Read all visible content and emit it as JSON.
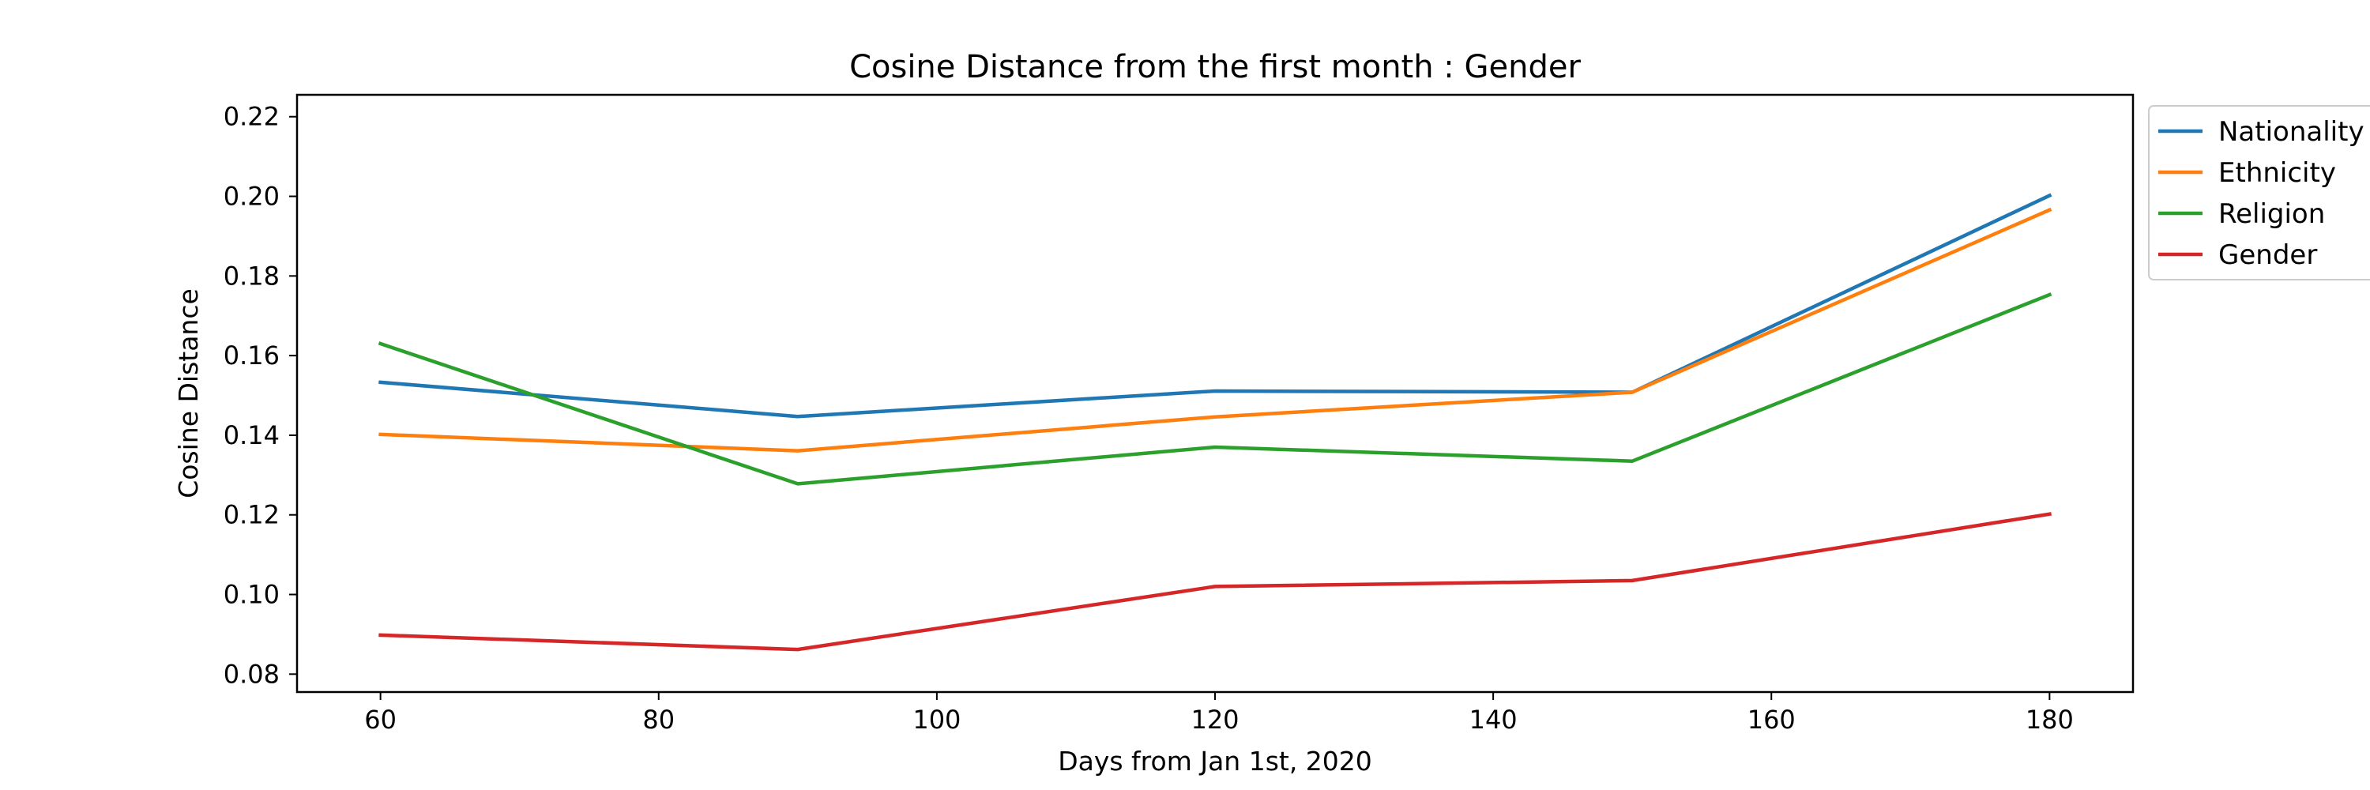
{
  "chart_data": {
    "type": "line",
    "title": "Cosine Distance from the first month : Gender",
    "xlabel": "Days from Jan 1st, 2020",
    "ylabel": "Cosine Distance",
    "x": [
      60,
      90,
      120,
      150,
      180
    ],
    "xlim": [
      54,
      186
    ],
    "ylim": [
      0.0755,
      0.2255
    ],
    "xticks": [
      60,
      80,
      100,
      120,
      140,
      160,
      180
    ],
    "yticks": [
      0.08,
      0.1,
      0.12,
      0.14,
      0.16,
      0.18,
      0.2,
      0.22
    ],
    "grid": false,
    "legend_position": "outside-top-right",
    "series": [
      {
        "name": "Nationality",
        "color": "#1f77b4",
        "values": [
          0.1533,
          0.1447,
          0.1511,
          0.1508,
          0.2002
        ]
      },
      {
        "name": "Ethnicity",
        "color": "#ff7f0e",
        "values": [
          0.1402,
          0.1361,
          0.1446,
          0.1508,
          0.1966
        ]
      },
      {
        "name": "Religion",
        "color": "#2ca02c",
        "values": [
          0.163,
          0.1278,
          0.137,
          0.1335,
          0.1753
        ]
      },
      {
        "name": "Gender",
        "color": "#d62728",
        "values": [
          0.0898,
          0.0862,
          0.102,
          0.1035,
          0.1202
        ]
      }
    ]
  }
}
